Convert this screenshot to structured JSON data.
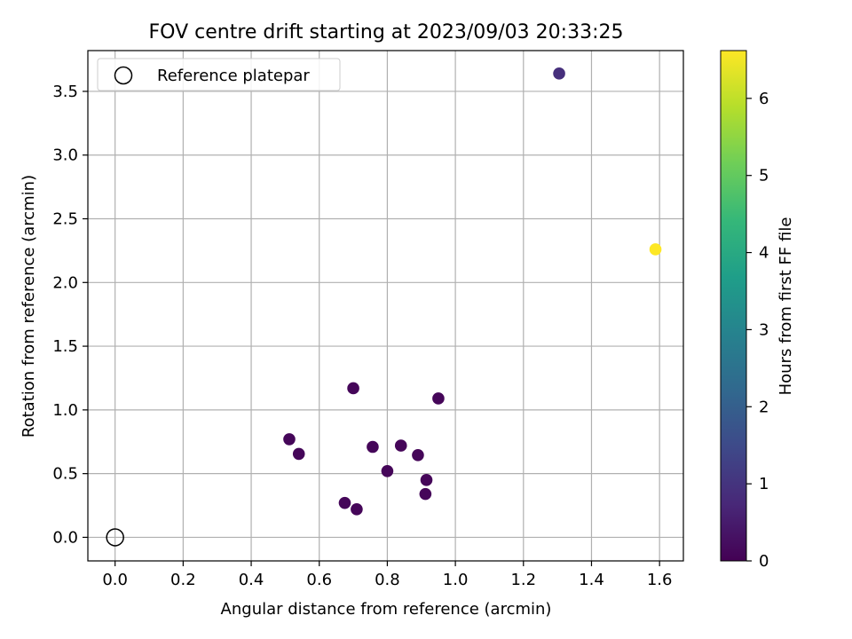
{
  "chart_data": {
    "type": "scatter",
    "title": "FOV centre drift starting at 2023/09/03 20:33:25",
    "xlabel": "Angular distance from reference (arcmin)",
    "ylabel": "Rotation from reference (arcmin)",
    "xlim": [
      -0.08,
      1.67
    ],
    "ylim": [
      -0.185,
      3.82
    ],
    "xticks": [
      0.0,
      0.2,
      0.4,
      0.6,
      0.8,
      1.0,
      1.2,
      1.4,
      1.6
    ],
    "xtick_labels": [
      "0.0",
      "0.2",
      "0.4",
      "0.6",
      "0.8",
      "1.0",
      "1.2",
      "1.4",
      "1.6"
    ],
    "yticks": [
      0.0,
      0.5,
      1.0,
      1.5,
      2.0,
      2.5,
      3.0,
      3.5
    ],
    "ytick_labels": [
      "0.0",
      "0.5",
      "1.0",
      "1.5",
      "2.0",
      "2.5",
      "3.0",
      "3.5"
    ],
    "grid": true,
    "legend": {
      "position": "top-left",
      "entries": [
        "Reference platepar"
      ]
    },
    "reference_point": {
      "x": 0.0,
      "y": 0.0,
      "label": "Reference platepar"
    },
    "colorbar": {
      "label": "Hours from first FF file",
      "range": [
        0,
        6.62
      ],
      "ticks": [
        0,
        1,
        2,
        3,
        4,
        5,
        6
      ],
      "tick_labels": [
        "0",
        "1",
        "2",
        "3",
        "4",
        "5",
        "6"
      ],
      "colormap": [
        "#440154",
        "#482878",
        "#3e4989",
        "#31688e",
        "#26828e",
        "#1f9e89",
        "#35b779",
        "#6ece58",
        "#b5de2b",
        "#fde725"
      ]
    },
    "points": [
      {
        "x": 0.512,
        "y": 0.77,
        "hours": 0.1
      },
      {
        "x": 0.54,
        "y": 0.655,
        "hours": 0.1
      },
      {
        "x": 0.675,
        "y": 0.27,
        "hours": 0.1
      },
      {
        "x": 0.71,
        "y": 0.22,
        "hours": 0.1
      },
      {
        "x": 0.7,
        "y": 1.17,
        "hours": 0.1
      },
      {
        "x": 0.757,
        "y": 0.71,
        "hours": 0.1
      },
      {
        "x": 0.8,
        "y": 0.52,
        "hours": 0.1
      },
      {
        "x": 0.84,
        "y": 0.72,
        "hours": 0.1
      },
      {
        "x": 0.89,
        "y": 0.645,
        "hours": 0.1
      },
      {
        "x": 0.915,
        "y": 0.45,
        "hours": 0.1
      },
      {
        "x": 0.912,
        "y": 0.34,
        "hours": 0.1
      },
      {
        "x": 0.95,
        "y": 1.09,
        "hours": 0.1
      },
      {
        "x": 1.305,
        "y": 3.64,
        "hours": 0.9
      },
      {
        "x": 1.588,
        "y": 2.26,
        "hours": 6.62
      }
    ]
  }
}
